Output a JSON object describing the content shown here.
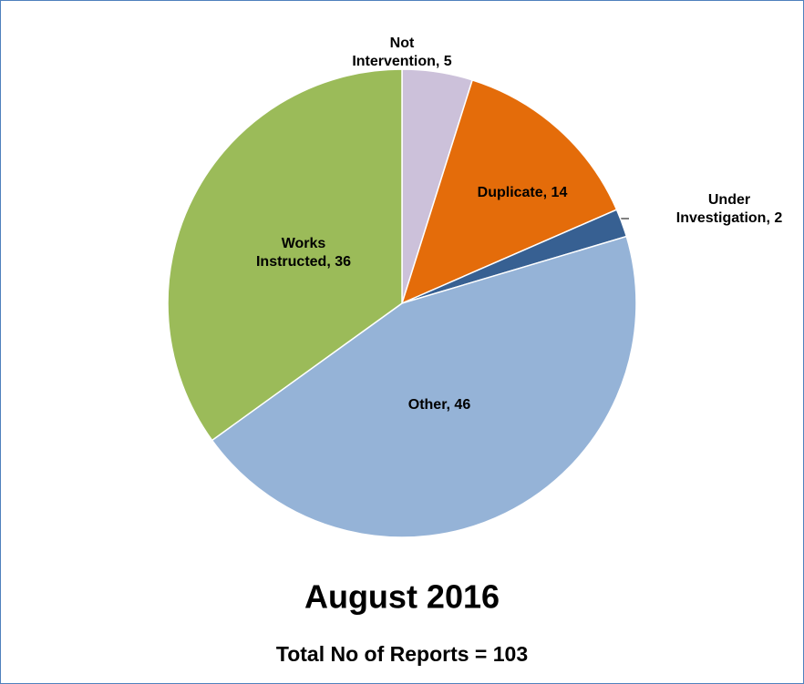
{
  "chart_data": {
    "type": "pie",
    "values": [
      5,
      14,
      2,
      46,
      36
    ],
    "value_labels": [
      "Not Intervention, 5",
      "Duplicate, 14",
      "Under Investigation, 2",
      "Other, 46",
      "Works Instructed, 36"
    ],
    "colors": [
      "#ccc1da",
      "#e46c0a",
      "#376092",
      "#95b3d7",
      "#9bbb59"
    ],
    "title": "August 2016",
    "subtitle": "Total No of Reports = 103"
  }
}
